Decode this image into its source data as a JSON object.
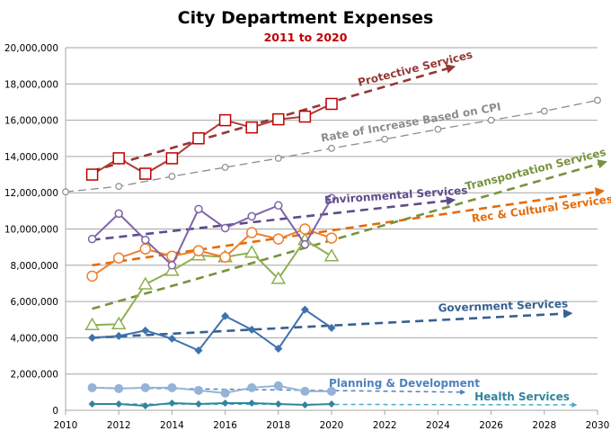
{
  "chart_data": {
    "type": "line",
    "title": "City Department Expenses",
    "subtitle": "2011 to 2020",
    "xlabel": "",
    "ylabel": "",
    "xlim": [
      2010,
      2030
    ],
    "ylim": [
      0,
      20000000
    ],
    "grid": "horizontal",
    "legend": "none (series labelled inline next to trend arrows)",
    "x_ticks": [
      "2010",
      "2012",
      "2014",
      "2016",
      "2018",
      "2020",
      "2022",
      "2024",
      "2026",
      "2028",
      "2030"
    ],
    "y_ticks": [
      "0",
      "2,000,000",
      "4,000,000",
      "6,000,000",
      "8,000,000",
      "10,000,000",
      "12,000,000",
      "14,000,000",
      "16,000,000",
      "18,000,000",
      "20,000,000"
    ],
    "x": [
      2011,
      2012,
      2013,
      2014,
      2015,
      2016,
      2017,
      2018,
      2019,
      2020
    ],
    "series": [
      {
        "name": "Protective Services",
        "color": "#b03a37",
        "trend_color": "#953735",
        "marker": "square",
        "values": [
          13000000,
          13900000,
          13050000,
          13900000,
          15000000,
          16000000,
          15600000,
          16050000,
          16200000,
          16900000
        ],
        "trend": {
          "x": [
            2011,
            2024.6
          ],
          "y": [
            13200000,
            18950000
          ]
        }
      },
      {
        "name": "Environmental Services",
        "color": "#7f63a8",
        "trend_color": "#5f4b8b",
        "marker": "circle",
        "values": [
          9450000,
          10850000,
          9400000,
          8000000,
          11100000,
          10050000,
          10700000,
          11300000,
          9150000,
          11700000
        ],
        "trend": {
          "x": [
            2011,
            2024.6
          ],
          "y": [
            9400000,
            11600000
          ]
        }
      },
      {
        "name": "Rec & Cultural Services",
        "color": "#f07f2a",
        "trend_color": "#e46c0a",
        "marker": "circle-large",
        "values": [
          7400000,
          8400000,
          8900000,
          8500000,
          8800000,
          8450000,
          9800000,
          9450000,
          10000000,
          9500000
        ],
        "trend": {
          "x": [
            2011,
            2030.2
          ],
          "y": [
            8000000,
            12100000
          ]
        }
      },
      {
        "name": "Transportation Services",
        "color": "#8db04f",
        "trend_color": "#77933c",
        "marker": "triangle",
        "values": [
          4700000,
          4750000,
          6950000,
          7700000,
          8550000,
          8450000,
          8700000,
          7250000,
          9400000,
          8500000
        ],
        "trend": {
          "x": [
            2011,
            2030.3
          ],
          "y": [
            5600000,
            13700000
          ]
        }
      },
      {
        "name": "Government Services",
        "color": "#3f72ad",
        "trend_color": "#376092",
        "marker": "diamond",
        "values": [
          4000000,
          4100000,
          4400000,
          3950000,
          3300000,
          5200000,
          4450000,
          3400000,
          5550000,
          4550000
        ],
        "trend": {
          "x": [
            2011,
            2029
          ],
          "y": [
            4000000,
            5350000
          ]
        }
      },
      {
        "name": "Planning & Development",
        "color": "#95b3d7",
        "trend_color": "#4f81bd",
        "marker": "dot",
        "values": [
          1250000,
          1200000,
          1250000,
          1250000,
          1100000,
          950000,
          1250000,
          1350000,
          1050000,
          1050000
        ],
        "trend": {
          "x": [
            2011,
            2025
          ],
          "y": [
            1250000,
            1000000
          ]
        }
      },
      {
        "name": "Health Services",
        "color": "#31859c",
        "trend_color": "#4bacc6",
        "marker": "diamond-small",
        "values": [
          350000,
          350000,
          250000,
          400000,
          350000,
          400000,
          400000,
          350000,
          300000,
          350000
        ],
        "trend": {
          "x": [
            2011,
            2029.2
          ],
          "y": [
            350000,
            300000
          ]
        }
      }
    ],
    "reference": {
      "name": "Rate of Increase Based on CPI",
      "color": "#8c8c8c",
      "x": [
        2010,
        2012,
        2014,
        2016,
        2018,
        2020,
        2022,
        2024,
        2026,
        2028,
        2030
      ],
      "values": [
        12050000,
        12350000,
        12900000,
        13400000,
        13900000,
        14450000,
        14950000,
        15500000,
        16000000,
        16500000,
        17100000
      ]
    }
  }
}
